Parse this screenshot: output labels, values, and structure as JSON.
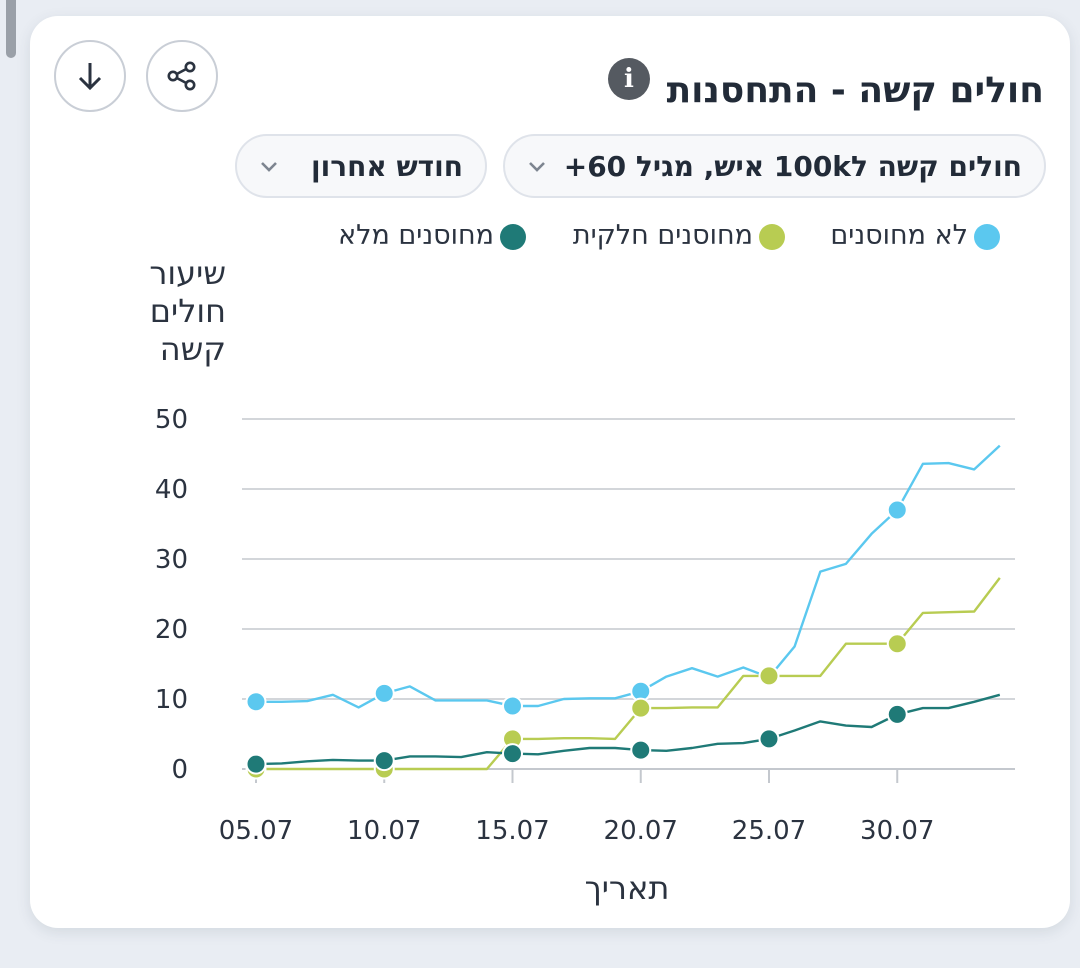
{
  "card": {
    "title": "חולים קשה - התחסנות",
    "info_icon": "info-icon",
    "share_icon": "share-icon",
    "download_icon": "download-arrow-icon"
  },
  "filters": {
    "metric": "חולים קשה ל100k איש, מגיל 60+",
    "period": "חודש אחרון"
  },
  "colors": {
    "unvaccinated": "#5bc8ef",
    "partial": "#b8cc52",
    "full": "#1f7a77"
  },
  "chart_data": {
    "type": "line",
    "ylabel": "שיעור חולים קשה",
    "xlabel": "תאריך",
    "ylim": [
      0,
      50
    ],
    "yticks": [
      0,
      10,
      20,
      30,
      40,
      50
    ],
    "xticks": [
      "05.07",
      "10.07",
      "15.07",
      "20.07",
      "25.07",
      "30.07"
    ],
    "grid": true,
    "legend_position": "top",
    "x_start_label": "05.07",
    "series": [
      {
        "name": "לא מחוסנים",
        "color": "#5bc8ef",
        "values": [
          9.6,
          9.6,
          9.7,
          10.6,
          8.8,
          10.8,
          11.8,
          9.8,
          9.8,
          9.8,
          9.0,
          9.0,
          10.0,
          10.1,
          10.1,
          11.1,
          13.2,
          14.4,
          13.2,
          14.5,
          13.1,
          17.5,
          28.2,
          29.3,
          33.6,
          37.0,
          43.6,
          43.7,
          42.8,
          46.2
        ]
      },
      {
        "name": "מחוסנים חלקית",
        "color": "#b8cc52",
        "values": [
          0,
          0,
          0,
          0,
          0,
          0,
          0,
          0,
          0,
          0,
          4.3,
          4.3,
          4.4,
          4.4,
          4.3,
          8.7,
          8.7,
          8.8,
          8.8,
          13.3,
          13.3,
          13.3,
          13.3,
          17.9,
          17.9,
          17.9,
          22.3,
          22.4,
          22.5,
          27.3
        ]
      },
      {
        "name": "מחוסנים מלא",
        "color": "#1f7a77",
        "values": [
          0.7,
          0.8,
          1.1,
          1.3,
          1.2,
          1.2,
          1.8,
          1.8,
          1.7,
          2.4,
          2.2,
          2.1,
          2.6,
          3.0,
          3.0,
          2.7,
          2.6,
          3.0,
          3.6,
          3.7,
          4.3,
          5.5,
          6.8,
          6.2,
          6.0,
          7.8,
          8.7,
          8.7,
          9.6,
          10.6
        ]
      }
    ],
    "markers_every": 5
  }
}
